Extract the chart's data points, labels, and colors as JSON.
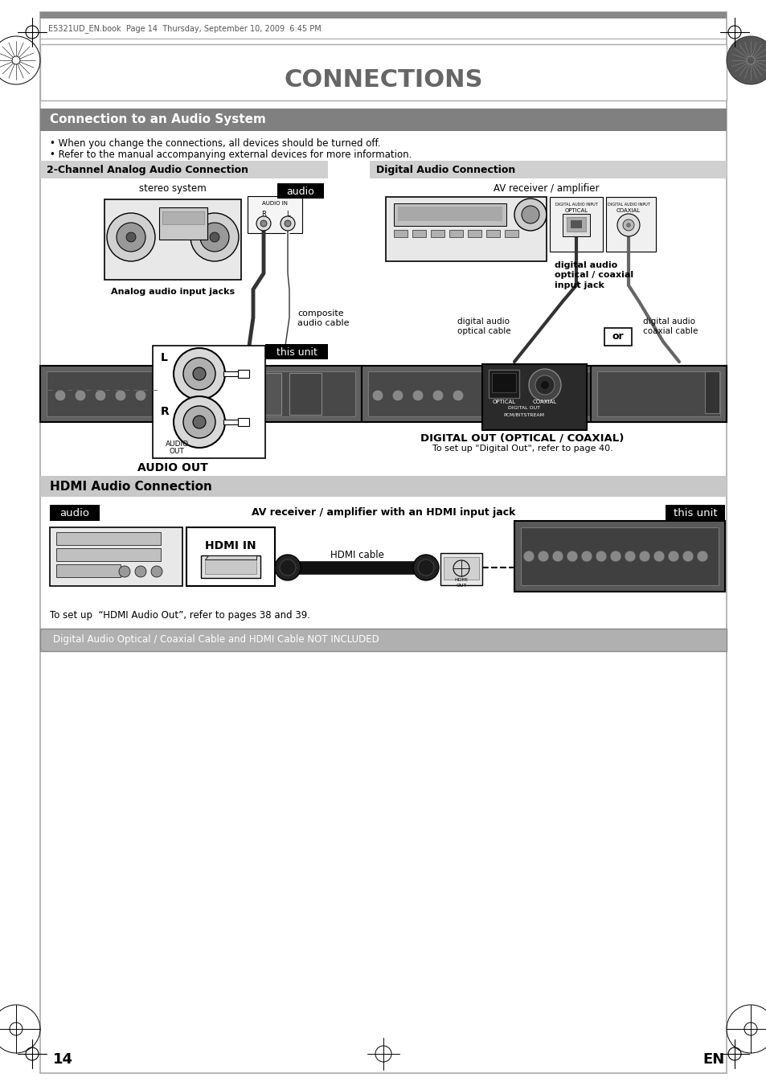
{
  "page_bg": "#ffffff",
  "title": "CONNECTIONS",
  "title_color": "#666666",
  "header_file_text": "E5321UD_EN.book  Page 14  Thursday, September 10, 2009  6:45 PM",
  "section1_title": "Connection to an Audio System",
  "section1_bg": "#808080",
  "section1_text_color": "#ffffff",
  "bullet1": "When you change the connections, all devices should be turned off.",
  "bullet2": "Refer to the manual accompanying external devices for more information.",
  "subsec_analog_title": "2-Channel Analog Audio Connection",
  "subsec_digital_title": "Digital Audio Connection",
  "subsec_bg": "#d0d0d0",
  "label_stereo": "stereo system",
  "label_av_receiver": "AV receiver / amplifier",
  "label_analog_jacks": "Analog audio input jacks",
  "label_composite": "composite\naudio cable",
  "label_audio_black": "audio",
  "label_this_unit_black": "this unit",
  "label_audio_out": "AUDIO OUT",
  "label_digital_out": "DIGITAL OUT (OPTICAL / COAXIAL)",
  "label_digital_out_sub": "To set up \"Digital Out\", refer to page 40.",
  "label_dig_audio_optical": "digital audio\noptical / coaxial\ninput jack",
  "label_dig_optical_cable": "digital audio\noptical cable",
  "label_dig_coaxial_cable": "digital audio\ncoaxial cable",
  "label_or": "or",
  "section2_title": "HDMI Audio Connection",
  "section2_bg": "#c8c8c8",
  "label_audio_hdmi": "audio",
  "label_av_hdmi": "AV receiver / amplifier with an HDMI input jack",
  "label_this_unit_hdmi": "this unit",
  "label_hdmi_in": "HDMI IN",
  "label_hdmi_cable": "HDMI cable",
  "hdmi_note": "To set up  “HDMI Audio Out”, refer to pages 38 and 39.",
  "bottom_notice": "Digital Audio Optical / Coaxial Cable and HDMI Cable NOT INCLUDED",
  "bottom_notice_bg": "#b0b0b0",
  "page_num": "14",
  "page_en": "EN"
}
